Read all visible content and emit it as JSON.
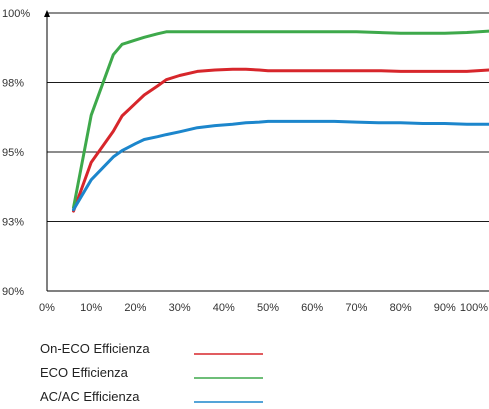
{
  "chart_data": {
    "type": "line",
    "title": "",
    "xlabel": "",
    "ylabel": "",
    "x": [
      6,
      10,
      15,
      17,
      20,
      22,
      25,
      27,
      30,
      34,
      38,
      42,
      45,
      48,
      50,
      55,
      60,
      65,
      70,
      75,
      80,
      85,
      90,
      95,
      100
    ],
    "xlim": [
      0,
      100
    ],
    "x_ticks": [
      "0%",
      "10%",
      "20%",
      "30%",
      "40%",
      "50%",
      "60%",
      "70%",
      "80%",
      "90%",
      "100%"
    ],
    "y_ticks": [
      "90%",
      "93%",
      "95%",
      "98%",
      "100%"
    ],
    "y_tick_levels": [
      0,
      1,
      2,
      3,
      4
    ],
    "ylim": [
      0,
      4
    ],
    "grid": "horizontal",
    "legend_position": "bottom-left",
    "series": [
      {
        "name": "On-ECO  Efficienza",
        "color": "#d7262b",
        "values": [
          1.15,
          1.85,
          2.3,
          2.52,
          2.7,
          2.82,
          2.95,
          3.04,
          3.1,
          3.16,
          3.18,
          3.19,
          3.19,
          3.18,
          3.17,
          3.17,
          3.17,
          3.17,
          3.17,
          3.17,
          3.16,
          3.16,
          3.16,
          3.16,
          3.18
        ]
      },
      {
        "name": "ECO  Efficienza",
        "color": "#3ea94b",
        "values": [
          1.2,
          2.53,
          3.4,
          3.55,
          3.61,
          3.65,
          3.7,
          3.73,
          3.73,
          3.73,
          3.73,
          3.73,
          3.73,
          3.73,
          3.73,
          3.73,
          3.73,
          3.73,
          3.73,
          3.72,
          3.71,
          3.71,
          3.71,
          3.72,
          3.74
        ]
      },
      {
        "name": "AC/AC  Efficienza",
        "color": "#1c86cc",
        "values": [
          1.17,
          1.6,
          1.93,
          2.02,
          2.12,
          2.18,
          2.22,
          2.25,
          2.29,
          2.35,
          2.38,
          2.4,
          2.42,
          2.43,
          2.44,
          2.44,
          2.44,
          2.44,
          2.43,
          2.42,
          2.42,
          2.41,
          2.41,
          2.4,
          2.4
        ]
      }
    ]
  }
}
